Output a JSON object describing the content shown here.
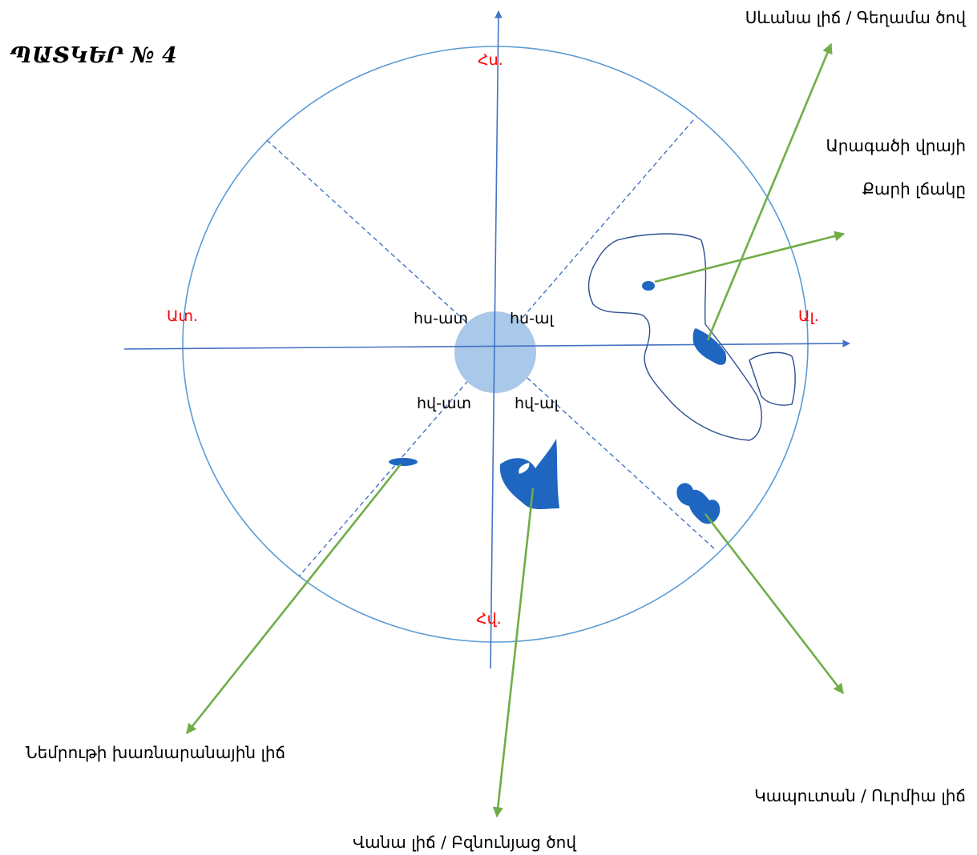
{
  "figure": {
    "title": "ՊԱՏԿԵՐ № 4"
  },
  "directions": {
    "north": "Հս.",
    "south": "Հվ.",
    "east": "Ալ.",
    "west": "Ատ."
  },
  "intercardinal": {
    "nw": "հս-ատ",
    "ne": "հս-ալ",
    "sw": "հվ-ատ",
    "se": "հվ-ալ"
  },
  "labels": {
    "sevan": "Սևանա լիճ / Գեղամա ծով",
    "stone_line_1": "Արագածի վրայի",
    "stone_line_2": "Քարի լճակը",
    "nemrut": "Նեմրութի խառնարանային լիճ",
    "kaputan": "Կապուտան / Ուրմիա լիճ",
    "van": "Վանա լիճ / Բզնունյաց ծով"
  },
  "colors": {
    "axis": "#4472c4",
    "circle": "#5b9bd5",
    "center_disc": "#a9c8ea",
    "lake_fill": "#1f66c1",
    "arrow": "#70ad47",
    "direction_text": "#ff0000",
    "outline": "#2f4f8f"
  }
}
